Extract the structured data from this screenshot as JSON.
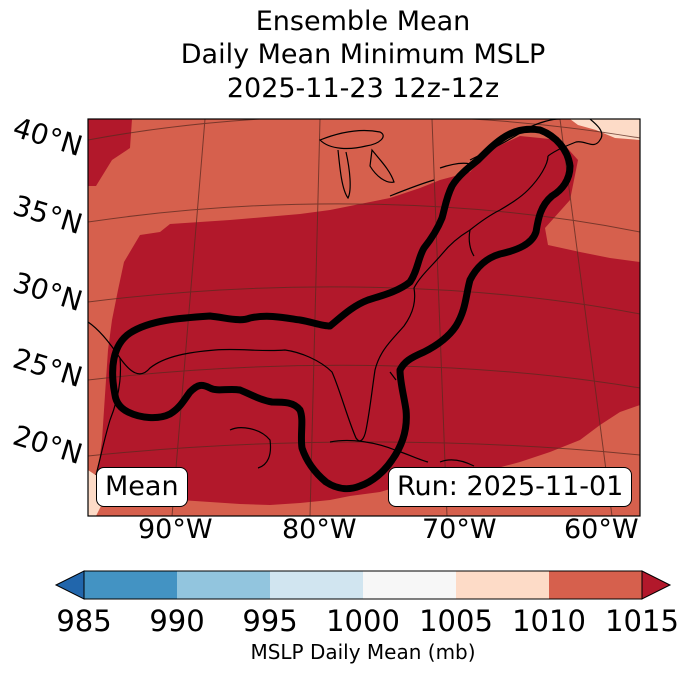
{
  "title": {
    "line1": "Ensemble Mean",
    "line2": "Daily Mean Minimum MSLP",
    "line3": "2025-11-23 12z-12z"
  },
  "map": {
    "lat_labels": [
      "40°N",
      "35°N",
      "30°N",
      "25°N",
      "20°N"
    ],
    "lon_labels": [
      "90°W",
      "80°W",
      "70°W",
      "60°W"
    ],
    "mean_label": "Mean",
    "run_label": "Run: 2025-11-01"
  },
  "colorbar": {
    "ticks": [
      "985",
      "990",
      "995",
      "1000",
      "1005",
      "1010",
      "1015"
    ],
    "label": "MSLP Daily Mean (mb)",
    "colors": [
      "#2166ac",
      "#4393c3",
      "#92c5de",
      "#d1e5f0",
      "#f7f7f7",
      "#fddbc7",
      "#d6604d",
      "#b2182b"
    ]
  },
  "fields": {
    "background_color": "#d6604d",
    "low_color": "#b2182b",
    "high_color": "#fddbc7",
    "contour_color": "#000000"
  }
}
